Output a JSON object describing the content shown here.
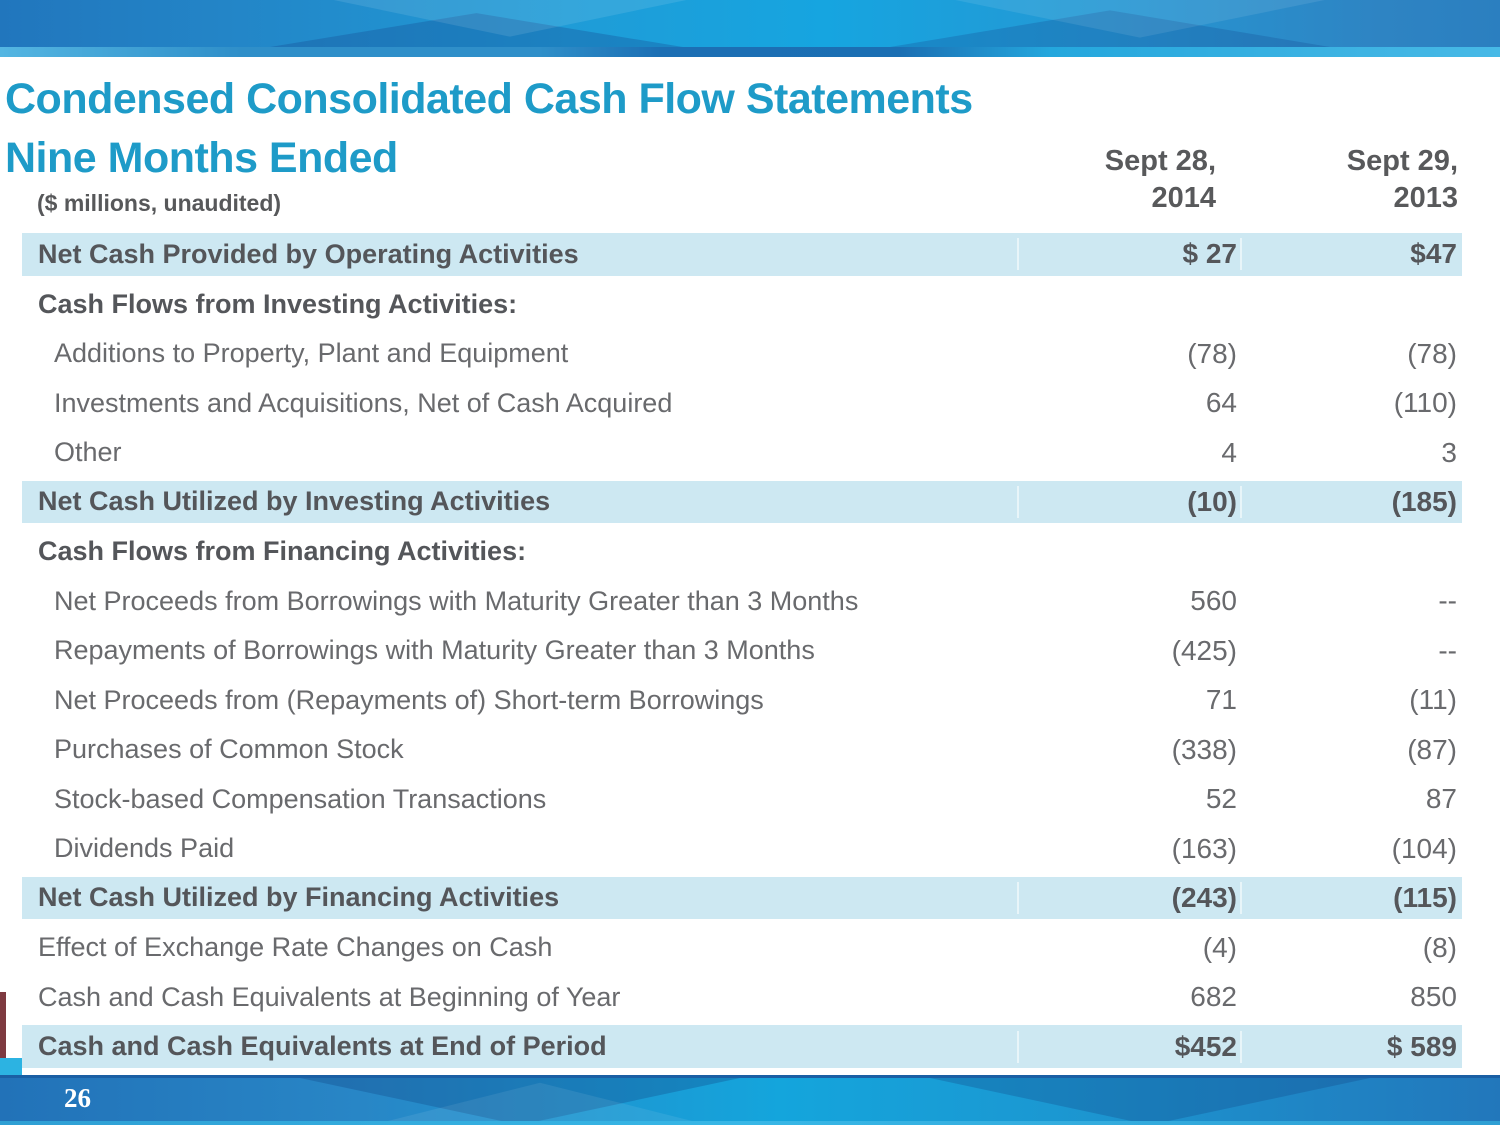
{
  "slide": {
    "title_line1": "Condensed Consolidated Cash Flow Statements",
    "title_line2": "Nine Months Ended",
    "units_note": "($ millions, unaudited)",
    "page_number": "26"
  },
  "table": {
    "columns": [
      {
        "line1": "Sept 28,",
        "line2": "2014"
      },
      {
        "line1": "Sept 29,",
        "line2": "2013"
      }
    ],
    "rows": [
      {
        "type": "total",
        "label": "Net Cash Provided by Operating Activities",
        "v2014": "$ 27",
        "v2013": "$47"
      },
      {
        "type": "section",
        "label": "Cash Flows from Investing Activities:",
        "v2014": "",
        "v2013": ""
      },
      {
        "type": "detail",
        "label": "Additions to Property, Plant and Equipment",
        "v2014": "(78)",
        "v2013": "(78)"
      },
      {
        "type": "detail",
        "label": "Investments and Acquisitions, Net of Cash Acquired",
        "v2014": "64",
        "v2013": "(110)"
      },
      {
        "type": "detail",
        "label": "Other",
        "v2014": "4",
        "v2013": "3"
      },
      {
        "type": "total",
        "label": "Net Cash Utilized by Investing Activities",
        "v2014": "(10)",
        "v2013": "(185)"
      },
      {
        "type": "section",
        "label": "Cash Flows from Financing Activities:",
        "v2014": "",
        "v2013": ""
      },
      {
        "type": "detail",
        "label": "Net Proceeds from Borrowings with Maturity Greater than 3 Months",
        "v2014": "560",
        "v2013": "--"
      },
      {
        "type": "detail",
        "label": "Repayments of Borrowings with Maturity Greater than 3 Months",
        "v2014": "(425)",
        "v2013": "--"
      },
      {
        "type": "detail",
        "label": "Net Proceeds from (Repayments of) Short-term Borrowings",
        "v2014": "71",
        "v2013": "(11)"
      },
      {
        "type": "detail",
        "label": "Purchases of Common Stock",
        "v2014": "(338)",
        "v2013": "(87)"
      },
      {
        "type": "detail",
        "label": "Stock-based Compensation Transactions",
        "v2014": "52",
        "v2013": "87"
      },
      {
        "type": "detail",
        "label": "Dividends Paid",
        "v2014": "(163)",
        "v2013": "(104)"
      },
      {
        "type": "total",
        "label": "Net Cash Utilized by Financing Activities",
        "v2014": "(243)",
        "v2013": "(115)"
      },
      {
        "type": "plain",
        "label": "Effect of Exchange Rate Changes on Cash",
        "v2014": "(4)",
        "v2013": "(8)"
      },
      {
        "type": "plain",
        "label": "Cash and Cash Equivalents at Beginning of Year",
        "v2014": "682",
        "v2013": "850"
      },
      {
        "type": "total",
        "label": "Cash and Cash Equivalents at End of Period",
        "v2014": "$452",
        "v2013": "$ 589"
      }
    ]
  },
  "colors": {
    "title_cyan": "#1e9bc8",
    "row_highlight": "#cde8f2",
    "text_dark_gray": "#54565a",
    "text_gray": "#696a6d",
    "banner_blue_dark": "#2176bd",
    "banner_blue_cyan": "#16a5e0"
  }
}
